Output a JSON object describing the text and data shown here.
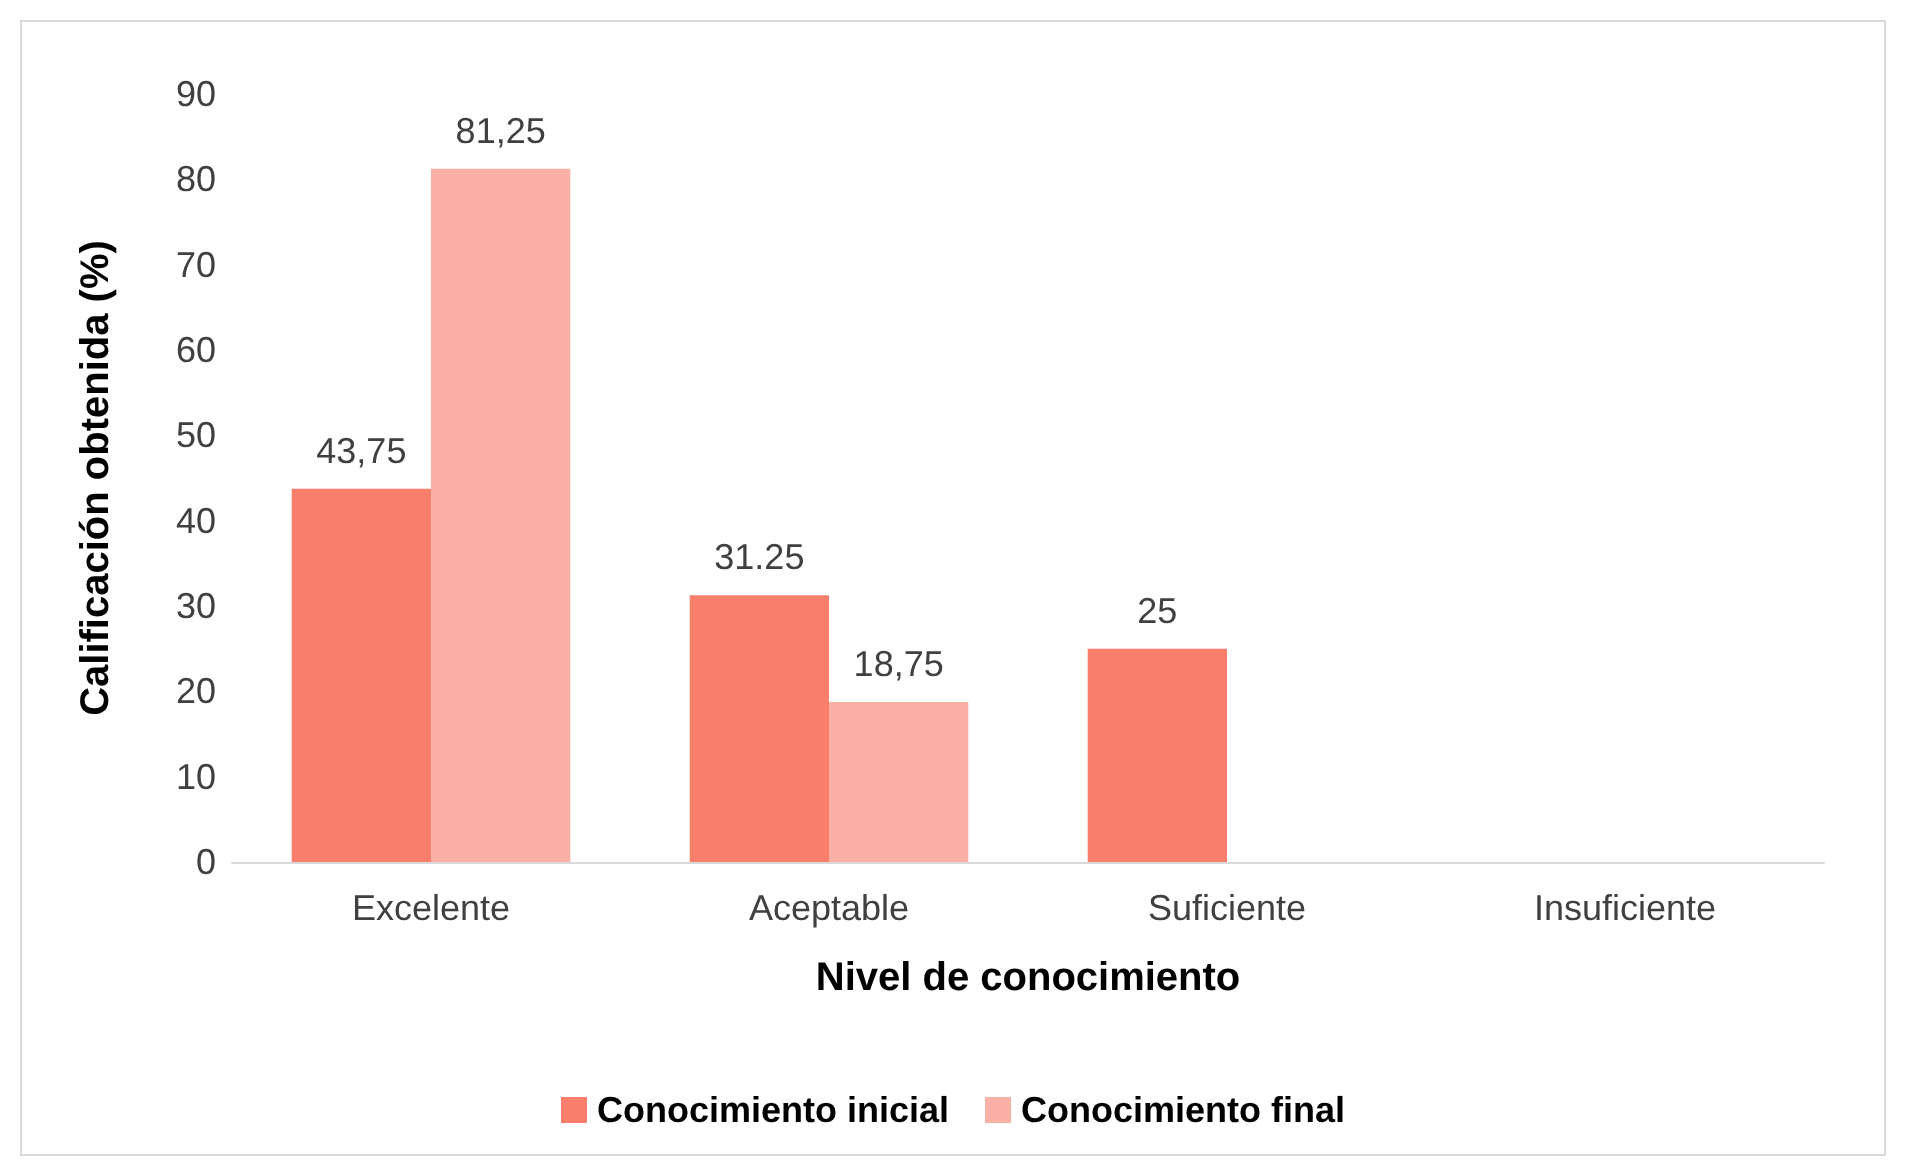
{
  "chart_data": {
    "type": "bar",
    "xlabel": "Nivel de conocimiento",
    "ylabel": "Calificación obtenida (%)",
    "categories": [
      "Excelente",
      "Aceptable",
      "Suficiente",
      "Insuficiente"
    ],
    "series": [
      {
        "name": "Conocimiento inicial",
        "color": "#f97e6b",
        "values": [
          43.75,
          31.25,
          25,
          0
        ],
        "value_labels": [
          "43,75",
          "31.25",
          "25",
          null
        ]
      },
      {
        "name": "Conocimiento final",
        "color": "#fbb0a5",
        "values": [
          81.25,
          18.75,
          0,
          0
        ],
        "value_labels": [
          "81,25",
          "18,75",
          null,
          null
        ]
      }
    ],
    "ylim": [
      0,
      90
    ],
    "yticks": [
      0,
      10,
      20,
      30,
      40,
      50,
      60,
      70,
      80,
      90
    ],
    "grid": false,
    "legend": "bottom"
  }
}
